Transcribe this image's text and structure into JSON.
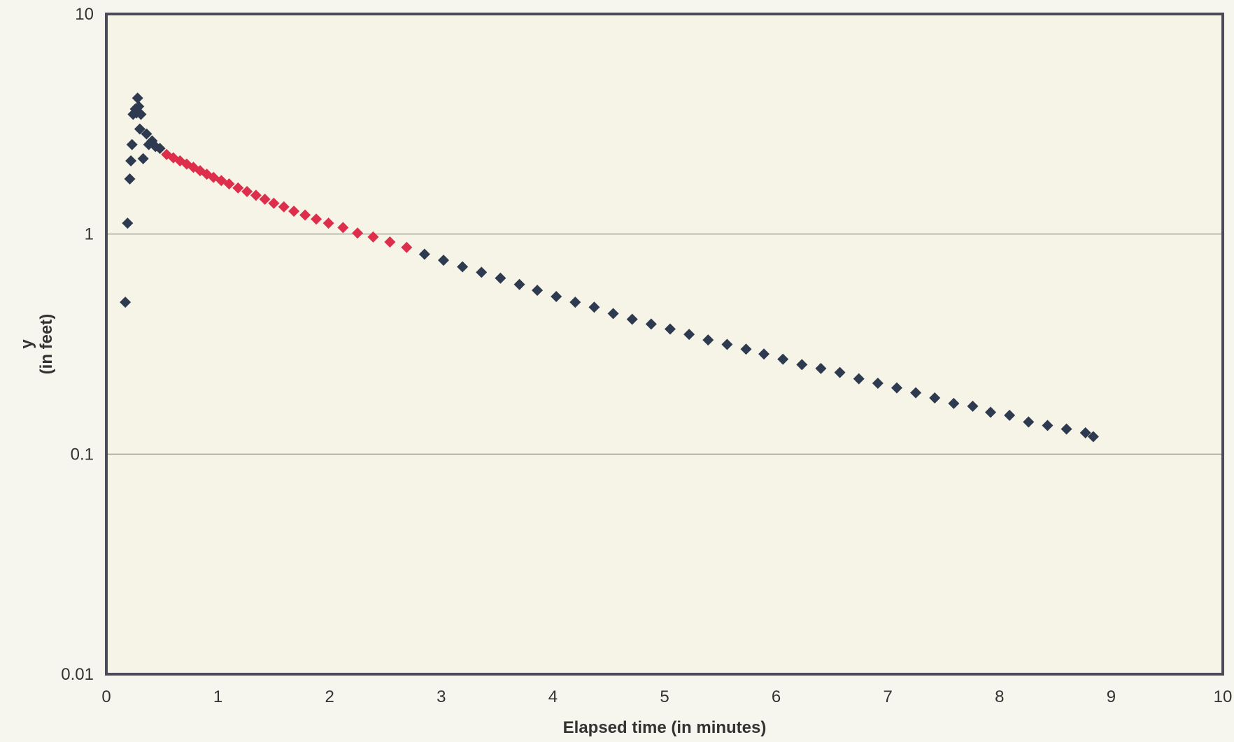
{
  "chart_data": {
    "type": "scatter",
    "xlabel": "Elapsed time (in minutes)",
    "ylabel": "y",
    "ylabel_sub": "(in feet)",
    "xlim": [
      0,
      10
    ],
    "ylim": [
      0.01,
      10
    ],
    "yscale": "log",
    "x_ticks": [
      0,
      1,
      2,
      3,
      4,
      5,
      6,
      7,
      8,
      9,
      10
    ],
    "x_tick_labels": [
      "0",
      "1",
      "2",
      "3",
      "4",
      "5",
      "6",
      "7",
      "8",
      "9",
      "10"
    ],
    "y_ticks": [
      0.01,
      0.1,
      1,
      10
    ],
    "y_tick_labels": [
      "0.01",
      "0.1",
      "1",
      "10"
    ],
    "grid": "horizontal",
    "legend": "none",
    "series": [
      {
        "color": "#2e3a4f",
        "points": [
          [
            0.17,
            0.49
          ],
          [
            0.19,
            1.12
          ],
          [
            0.21,
            1.78
          ],
          [
            0.22,
            2.15
          ],
          [
            0.23,
            2.55
          ],
          [
            0.24,
            3.5
          ],
          [
            0.26,
            3.7
          ],
          [
            0.27,
            3.55
          ],
          [
            0.28,
            4.15
          ],
          [
            0.29,
            3.8
          ],
          [
            0.31,
            3.5
          ],
          [
            0.3,
            3.0
          ],
          [
            0.33,
            2.2
          ],
          [
            0.36,
            2.85
          ],
          [
            0.38,
            2.55
          ],
          [
            0.41,
            2.65
          ],
          [
            0.44,
            2.5
          ],
          [
            0.48,
            2.45
          ],
          [
            2.85,
            0.81
          ],
          [
            3.02,
            0.76
          ],
          [
            3.19,
            0.71
          ],
          [
            3.36,
            0.67
          ],
          [
            3.53,
            0.63
          ],
          [
            3.7,
            0.59
          ],
          [
            3.86,
            0.555
          ],
          [
            4.03,
            0.52
          ],
          [
            4.2,
            0.49
          ],
          [
            4.37,
            0.465
          ],
          [
            4.54,
            0.435
          ],
          [
            4.71,
            0.41
          ],
          [
            4.88,
            0.39
          ],
          [
            5.05,
            0.37
          ],
          [
            5.22,
            0.35
          ],
          [
            5.39,
            0.33
          ],
          [
            5.56,
            0.315
          ],
          [
            5.73,
            0.3
          ],
          [
            5.89,
            0.285
          ],
          [
            6.06,
            0.27
          ],
          [
            6.23,
            0.255
          ],
          [
            6.4,
            0.245
          ],
          [
            6.57,
            0.235
          ],
          [
            6.74,
            0.22
          ],
          [
            6.91,
            0.21
          ],
          [
            7.08,
            0.2
          ],
          [
            7.25,
            0.19
          ],
          [
            7.42,
            0.18
          ],
          [
            7.59,
            0.17
          ],
          [
            7.76,
            0.165
          ],
          [
            7.92,
            0.155
          ],
          [
            8.09,
            0.15
          ],
          [
            8.26,
            0.14
          ],
          [
            8.43,
            0.135
          ],
          [
            8.6,
            0.13
          ],
          [
            8.77,
            0.125
          ],
          [
            8.84,
            0.12
          ]
        ]
      },
      {
        "color": "#dd2f4c",
        "points": [
          [
            0.54,
            2.3
          ],
          [
            0.6,
            2.22
          ],
          [
            0.66,
            2.15
          ],
          [
            0.72,
            2.08
          ],
          [
            0.78,
            2.01
          ],
          [
            0.84,
            1.94
          ],
          [
            0.9,
            1.87
          ],
          [
            0.96,
            1.81
          ],
          [
            1.03,
            1.75
          ],
          [
            1.1,
            1.69
          ],
          [
            1.18,
            1.62
          ],
          [
            1.26,
            1.56
          ],
          [
            1.34,
            1.5
          ],
          [
            1.42,
            1.44
          ],
          [
            1.5,
            1.38
          ],
          [
            1.59,
            1.33
          ],
          [
            1.68,
            1.27
          ],
          [
            1.78,
            1.22
          ],
          [
            1.88,
            1.17
          ],
          [
            1.99,
            1.12
          ],
          [
            2.12,
            1.07
          ],
          [
            2.25,
            1.01
          ],
          [
            2.39,
            0.97
          ],
          [
            2.54,
            0.92
          ],
          [
            2.69,
            0.87
          ]
        ]
      }
    ]
  }
}
